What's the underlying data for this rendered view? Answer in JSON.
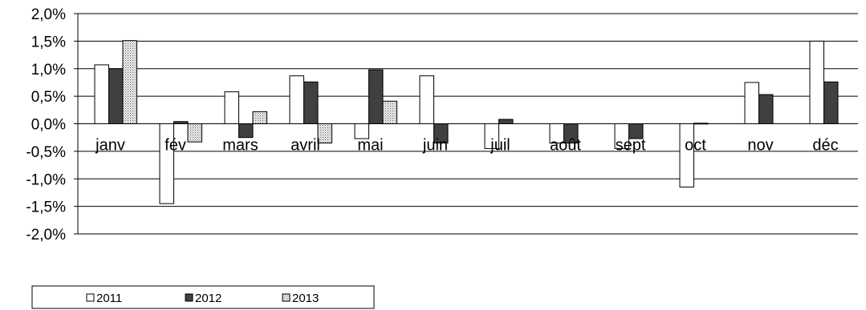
{
  "chart_data": {
    "type": "bar",
    "categories": [
      "janv",
      "fév",
      "mars",
      "avril",
      "mai",
      "juin",
      "juil",
      "août",
      "sept",
      "oct",
      "nov",
      "déc"
    ],
    "series": [
      {
        "name": "2011",
        "fill": "#ffffff",
        "pattern": "none",
        "values": [
          1.07,
          -1.45,
          0.58,
          0.87,
          -0.27,
          0.87,
          -0.45,
          -0.35,
          -0.45,
          -1.15,
          0.75,
          1.5
        ]
      },
      {
        "name": "2012",
        "fill": "#404040",
        "pattern": "none",
        "values": [
          1.0,
          0.04,
          -0.25,
          0.76,
          0.98,
          -0.35,
          0.08,
          -0.35,
          -0.27,
          0.01,
          0.53,
          0.76
        ]
      },
      {
        "name": "2013",
        "fill": "#dcdcdc",
        "pattern": "dots",
        "values": [
          1.51,
          -0.33,
          0.22,
          -0.35,
          0.41,
          null,
          null,
          null,
          null,
          null,
          null,
          null
        ]
      }
    ],
    "ylim": [
      -2.0,
      2.0
    ],
    "yticks": [
      2.0,
      1.5,
      1.0,
      0.5,
      0.0,
      -0.5,
      -1.0,
      -1.5,
      -2.0
    ],
    "ytick_labels": [
      "2,0%",
      "1,5%",
      "1,0%",
      "0,5%",
      "0,0%",
      "-0,5%",
      "-1,0%",
      "-1,5%",
      "-2,0%"
    ],
    "grid": true,
    "legend_position": "bottom-left",
    "title": "",
    "xlabel": "",
    "ylabel": ""
  }
}
